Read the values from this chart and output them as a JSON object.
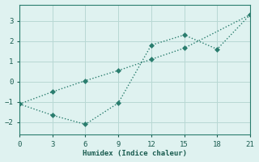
{
  "line1_x": [
    0,
    3,
    6,
    9,
    12,
    15,
    18,
    21
  ],
  "line1_y": [
    -1.1,
    -1.65,
    -2.1,
    -1.05,
    1.8,
    2.3,
    1.6,
    3.3
  ],
  "line2_x": [
    0,
    3,
    6,
    9,
    12,
    15,
    21
  ],
  "line2_y": [
    -1.1,
    -0.5,
    0.05,
    0.55,
    1.1,
    1.65,
    3.3
  ],
  "line_color": "#2a7d6e",
  "bg_color": "#dff2f0",
  "grid_color": "#b8d8d4",
  "xlabel": "Humidex (Indice chaleur)",
  "xlim": [
    0,
    21
  ],
  "ylim": [
    -2.6,
    3.8
  ],
  "xticks": [
    0,
    3,
    6,
    9,
    12,
    15,
    18,
    21
  ],
  "yticks": [
    -2,
    -1,
    0,
    1,
    2,
    3
  ],
  "marker_size": 3,
  "line_width": 1.0
}
